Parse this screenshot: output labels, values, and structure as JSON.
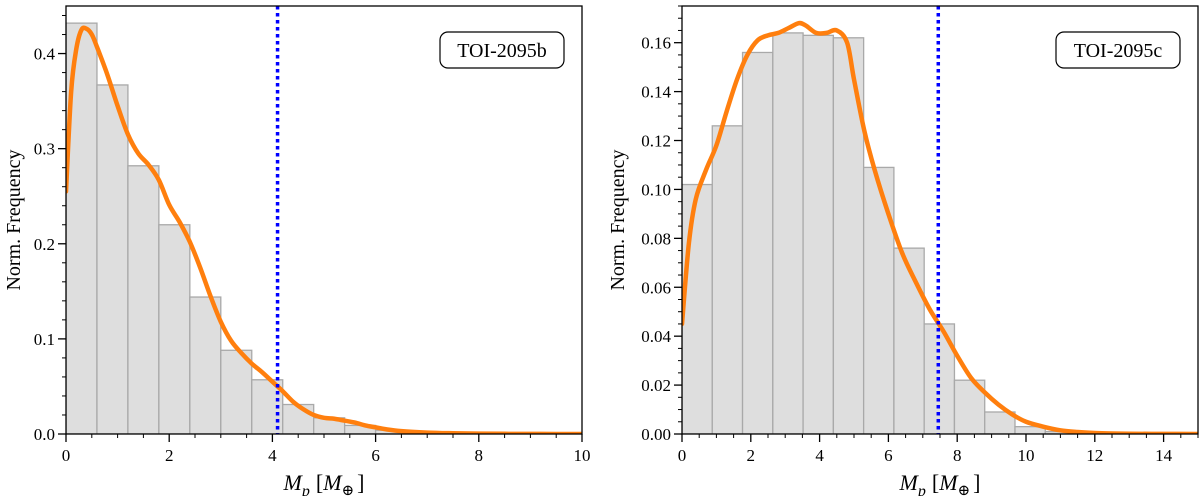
{
  "chart_data": [
    {
      "type": "bar",
      "panel_label": "TOI-2095b",
      "xlabel": {
        "symbol": "M",
        "subscript": "p",
        "unit_open": "[M",
        "unit_symbol": "⊕",
        "unit_close": "]"
      },
      "ylabel": "Norm. Frequency",
      "xlim": [
        0,
        10
      ],
      "ylim": [
        0,
        0.45
      ],
      "xticks": [
        0,
        2,
        4,
        6,
        8,
        10
      ],
      "yticks": [
        0.0,
        0.1,
        0.2,
        0.3,
        0.4
      ],
      "ytick_labels": [
        "0.0",
        "0.1",
        "0.2",
        "0.3",
        "0.4"
      ],
      "x_minor_step": 0.5,
      "y_minor_step": 0.02,
      "bar_color": "#dedede",
      "bar_edge_color": "#a9a9a9",
      "curve_color": "#ff7f0e",
      "vline_color": "#0000ff",
      "bin_edges": [
        0,
        0.6,
        1.2,
        1.8,
        2.4,
        3.0,
        3.6,
        4.2,
        4.8,
        5.4,
        6.0,
        6.6,
        7.2,
        7.8,
        8.4,
        9.0,
        9.6,
        10.2
      ],
      "values": [
        0.432,
        0.367,
        0.282,
        0.22,
        0.144,
        0.088,
        0.057,
        0.031,
        0.017,
        0.009,
        0.004,
        0.002,
        0.001,
        0.001,
        0.0005,
        0.0003,
        0.0002
      ],
      "kde": {
        "x": [
          0,
          0.1,
          0.2,
          0.3,
          0.4,
          0.5,
          0.6,
          0.8,
          1.0,
          1.2,
          1.4,
          1.6,
          1.8,
          2.0,
          2.2,
          2.4,
          2.6,
          2.8,
          3.0,
          3.2,
          3.4,
          3.6,
          3.8,
          4.0,
          4.2,
          4.4,
          4.6,
          4.8,
          5.0,
          5.2,
          5.4,
          5.6,
          5.8,
          6.0,
          6.2,
          6.5,
          7.0,
          7.5,
          8.0,
          8.5,
          9.0,
          9.5,
          10.0
        ],
        "y": [
          0.255,
          0.36,
          0.405,
          0.425,
          0.426,
          0.42,
          0.407,
          0.378,
          0.345,
          0.315,
          0.295,
          0.283,
          0.267,
          0.241,
          0.223,
          0.202,
          0.175,
          0.145,
          0.118,
          0.098,
          0.085,
          0.074,
          0.065,
          0.055,
          0.045,
          0.034,
          0.026,
          0.02,
          0.017,
          0.016,
          0.014,
          0.012,
          0.009,
          0.007,
          0.005,
          0.003,
          0.0015,
          0.0008,
          0.0004,
          0.0002,
          0.0001,
          5e-05,
          0.0
        ]
      },
      "vline_x": 4.1
    },
    {
      "type": "bar",
      "panel_label": "TOI-2095c",
      "xlabel": {
        "symbol": "M",
        "subscript": "p",
        "unit_open": "[M",
        "unit_symbol": "⊕",
        "unit_close": "]"
      },
      "ylabel": "Norm. Frequency",
      "xlim": [
        0,
        15
      ],
      "ylim": [
        0,
        0.175
      ],
      "xticks": [
        0,
        2,
        4,
        6,
        8,
        10,
        12,
        14
      ],
      "yticks": [
        0.0,
        0.02,
        0.04,
        0.06,
        0.08,
        0.1,
        0.12,
        0.14,
        0.16
      ],
      "ytick_labels": [
        "0.00",
        "0.02",
        "0.04",
        "0.06",
        "0.08",
        "0.10",
        "0.12",
        "0.14",
        "0.16"
      ],
      "x_minor_step": 0.5,
      "y_minor_step": 0.005,
      "bar_color": "#dedede",
      "bar_edge_color": "#a9a9a9",
      "curve_color": "#ff7f0e",
      "vline_color": "#0000ff",
      "bin_edges": [
        0,
        0.88,
        1.76,
        2.64,
        3.52,
        4.4,
        5.28,
        6.16,
        7.04,
        7.92,
        8.8,
        9.68,
        10.56,
        11.44,
        12.32,
        13.2,
        14.08,
        14.96
      ],
      "values": [
        0.102,
        0.126,
        0.156,
        0.164,
        0.163,
        0.162,
        0.109,
        0.076,
        0.045,
        0.022,
        0.009,
        0.003,
        0.001,
        0.0005,
        0.0003,
        0.0002,
        0.0001
      ],
      "kde": {
        "x": [
          0,
          0.2,
          0.4,
          0.7,
          1.0,
          1.3,
          1.6,
          1.9,
          2.2,
          2.5,
          2.8,
          3.1,
          3.4,
          3.6,
          3.9,
          4.2,
          4.5,
          4.8,
          5.0,
          5.3,
          5.6,
          6.0,
          6.4,
          6.8,
          7.2,
          7.6,
          8.0,
          8.4,
          8.8,
          9.2,
          9.6,
          10.0,
          10.5,
          11.0,
          11.5,
          12.0,
          12.5,
          13.0,
          14.0,
          15.0
        ],
        "y": [
          0.045,
          0.078,
          0.096,
          0.108,
          0.118,
          0.132,
          0.145,
          0.155,
          0.161,
          0.163,
          0.164,
          0.166,
          0.168,
          0.167,
          0.164,
          0.164,
          0.165,
          0.16,
          0.145,
          0.124,
          0.108,
          0.09,
          0.074,
          0.062,
          0.051,
          0.042,
          0.032,
          0.023,
          0.017,
          0.012,
          0.008,
          0.005,
          0.003,
          0.0015,
          0.0008,
          0.0004,
          0.0002,
          0.0001,
          5e-05,
          0.0
        ]
      },
      "vline_x": 7.45
    }
  ]
}
